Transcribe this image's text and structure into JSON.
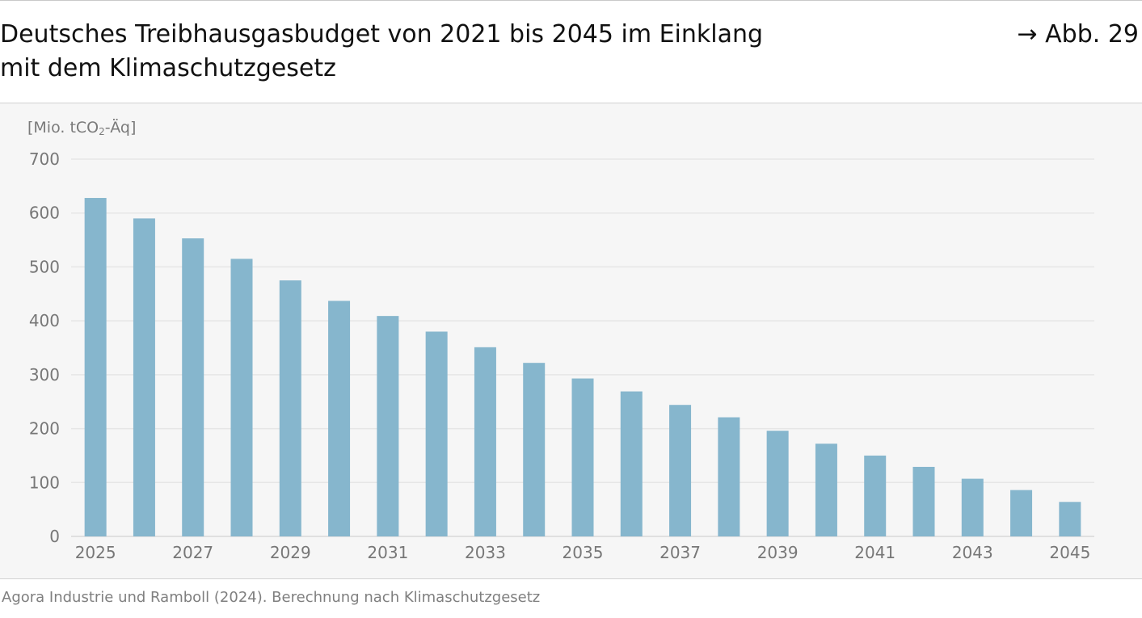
{
  "header": {
    "title_line1": "Deutsches Treibhausgasbudget von 2021 bis 2045 im Einklang",
    "title_line2": "mit dem Klimaschutzgesetz",
    "figure_ref": "→ Abb. 29"
  },
  "source": "Agora Industrie und Ramboll (2024). Berechnung nach Klimaschutzgesetz",
  "chart_data": {
    "type": "bar",
    "title": "Deutsches Treibhausgasbudget von 2021 bis 2045 im Einklang mit dem Klimaschutzgesetz",
    "xlabel": "",
    "ylabel": "",
    "unit_prefix": "[Mio. tCO",
    "unit_sub": "2",
    "unit_suffix": "-Äq]",
    "categories": [
      "2025",
      "2026",
      "2027",
      "2028",
      "2029",
      "2030",
      "2031",
      "2032",
      "2033",
      "2034",
      "2035",
      "2036",
      "2037",
      "2038",
      "2039",
      "2040",
      "2041",
      "2042",
      "2043",
      "2044",
      "2045"
    ],
    "values": [
      628,
      590,
      553,
      515,
      475,
      437,
      409,
      380,
      351,
      322,
      293,
      269,
      244,
      221,
      196,
      172,
      150,
      129,
      107,
      86,
      64
    ],
    "x_tick_labels": [
      "2025",
      "2027",
      "2029",
      "2031",
      "2033",
      "2035",
      "2037",
      "2039",
      "2041",
      "2043",
      "2045"
    ],
    "y_ticks": [
      0,
      100,
      200,
      300,
      400,
      500,
      600,
      700
    ],
    "ylim": [
      0,
      700
    ],
    "grid": true,
    "legend": "none",
    "bar_color": "#86b6cd",
    "grid_color": "#e6e6e6",
    "tick_color": "#777777"
  }
}
